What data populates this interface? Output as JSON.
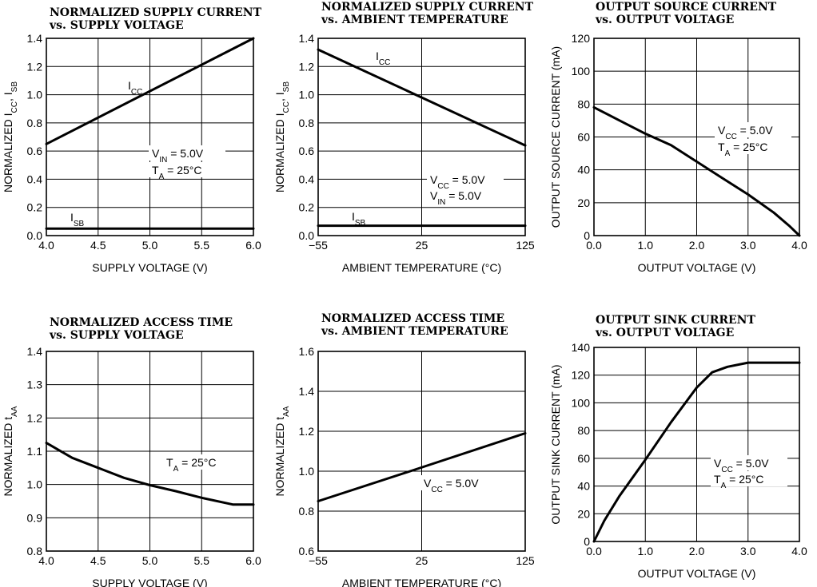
{
  "chart_data": [
    {
      "type": "line",
      "title": "NORMALIZED SUPPLY CURRENT",
      "subtitle": "vs. SUPPLY VOLTAGE",
      "xlabel": "SUPPLY VOLTAGE (V)",
      "ylabel": "NORMALIZED I_CC, I_SB",
      "xlim": [
        4.0,
        6.0
      ],
      "ylim": [
        0.0,
        1.4
      ],
      "xticks": [
        "4.0",
        "4.5",
        "5.0",
        "5.5",
        "6.0"
      ],
      "yticks": [
        "0.0",
        "0.2",
        "0.4",
        "0.6",
        "0.8",
        "1.0",
        "1.2",
        "1.4"
      ],
      "grid": true,
      "series": [
        {
          "name": "I_CC",
          "x": [
            4.0,
            6.0
          ],
          "y": [
            0.65,
            1.4
          ]
        },
        {
          "name": "I_SB",
          "x": [
            4.0,
            6.0
          ],
          "y": [
            0.05,
            0.05
          ]
        }
      ],
      "annotations": [
        "V_IN = 5.0V",
        "T_A = 25°C"
      ]
    },
    {
      "type": "line",
      "title": "NORMALIZED SUPPLY CURRENT",
      "subtitle": "vs. AMBIENT TEMPERATURE",
      "xlabel": "AMBIENT TEMPERATURE (°C)",
      "ylabel": "NORMALIZED I_CC, I_SB",
      "xlim": [
        -55,
        125
      ],
      "ylim": [
        0.0,
        1.4
      ],
      "xticks": [
        "−55",
        "25",
        "125"
      ],
      "yticks": [
        "0.0",
        "0.2",
        "0.4",
        "0.6",
        "0.8",
        "1.0",
        "1.2",
        "1.4"
      ],
      "grid": true,
      "series": [
        {
          "name": "I_CC",
          "x": [
            -55,
            125
          ],
          "y": [
            1.32,
            0.64
          ]
        },
        {
          "name": "I_SB",
          "x": [
            -55,
            125
          ],
          "y": [
            0.07,
            0.07
          ]
        }
      ],
      "annotations": [
        "V_CC = 5.0V",
        "V_IN = 5.0V"
      ]
    },
    {
      "type": "line",
      "title": "OUTPUT SOURCE CURRENT",
      "subtitle": "vs. OUTPUT VOLTAGE",
      "xlabel": "OUTPUT VOLTAGE (V)",
      "ylabel": "OUTPUT SOURCE CURRENT (mA)",
      "xlim": [
        0.0,
        4.0
      ],
      "ylim": [
        0,
        120
      ],
      "xticks": [
        "0.0",
        "1.0",
        "2.0",
        "3.0",
        "4.0"
      ],
      "yticks": [
        "0",
        "20",
        "40",
        "60",
        "80",
        "100",
        "120"
      ],
      "grid": true,
      "series": [
        {
          "x": [
            0.0,
            0.5,
            1.0,
            1.5,
            2.0,
            2.5,
            3.0,
            3.5,
            3.8,
            4.0
          ],
          "y": [
            78,
            70,
            62,
            55,
            45,
            35,
            25,
            14,
            6,
            0
          ]
        }
      ],
      "annotations": [
        "V_CC = 5.0V",
        "T_A = 25°C"
      ]
    },
    {
      "type": "line",
      "title": "NORMALIZED ACCESS TIME",
      "subtitle": "vs. SUPPLY VOLTAGE",
      "xlabel": "SUPPLY VOLTAGE (V)",
      "ylabel": "NORMALIZED t_AA",
      "xlim": [
        4.0,
        6.0
      ],
      "ylim": [
        0.8,
        1.4
      ],
      "xticks": [
        "4.0",
        "4.5",
        "5.0",
        "5.5",
        "6.0"
      ],
      "yticks": [
        "0.8",
        "0.9",
        "1.0",
        "1.1",
        "1.2",
        "1.3",
        "1.4"
      ],
      "grid": true,
      "series": [
        {
          "x": [
            4.0,
            4.25,
            4.5,
            4.75,
            5.0,
            5.25,
            5.5,
            5.8,
            6.0
          ],
          "y": [
            1.125,
            1.08,
            1.05,
            1.02,
            0.998,
            0.98,
            0.96,
            0.94,
            0.94
          ]
        }
      ],
      "annotations": [
        "T_A = 25°C"
      ]
    },
    {
      "type": "line",
      "title": "NORMALIZED ACCESS TIME",
      "subtitle": "vs. AMBIENT TEMPERATURE",
      "xlabel": "AMBIENT TEMPERATURE (°C)",
      "ylabel": "NORMALIZED t_AA",
      "xlim": [
        -55,
        125
      ],
      "ylim": [
        0.6,
        1.6
      ],
      "xticks": [
        "−55",
        "25",
        "125"
      ],
      "yticks": [
        "0.6",
        "0.8",
        "1.0",
        "1.2",
        "1.4",
        "1.6"
      ],
      "grid": true,
      "series": [
        {
          "x": [
            -55,
            25,
            125
          ],
          "y": [
            0.85,
            1.0,
            1.19
          ]
        }
      ],
      "annotations": [
        "V_CC = 5.0V"
      ]
    },
    {
      "type": "line",
      "title": "OUTPUT SINK CURRENT",
      "subtitle": "vs. OUTPUT VOLTAGE",
      "xlabel": "OUTPUT VOLTAGE (V)",
      "ylabel": "OUTPUT SINK CURRENT (mA)",
      "xlim": [
        0.0,
        4.0
      ],
      "ylim": [
        0,
        140
      ],
      "xticks": [
        "0.0",
        "1.0",
        "2.0",
        "3.0",
        "4.0"
      ],
      "yticks": [
        "0",
        "20",
        "40",
        "60",
        "80",
        "100",
        "120",
        "140"
      ],
      "grid": true,
      "series": [
        {
          "x": [
            0.0,
            0.2,
            0.5,
            1.0,
            1.5,
            2.0,
            2.3,
            2.6,
            3.0,
            3.5,
            4.0
          ],
          "y": [
            0,
            15,
            33,
            59,
            86,
            111,
            122,
            126,
            129,
            129,
            129
          ]
        }
      ],
      "annotations": [
        "V_CC = 5.0V",
        "T_A = 25°C"
      ]
    }
  ]
}
